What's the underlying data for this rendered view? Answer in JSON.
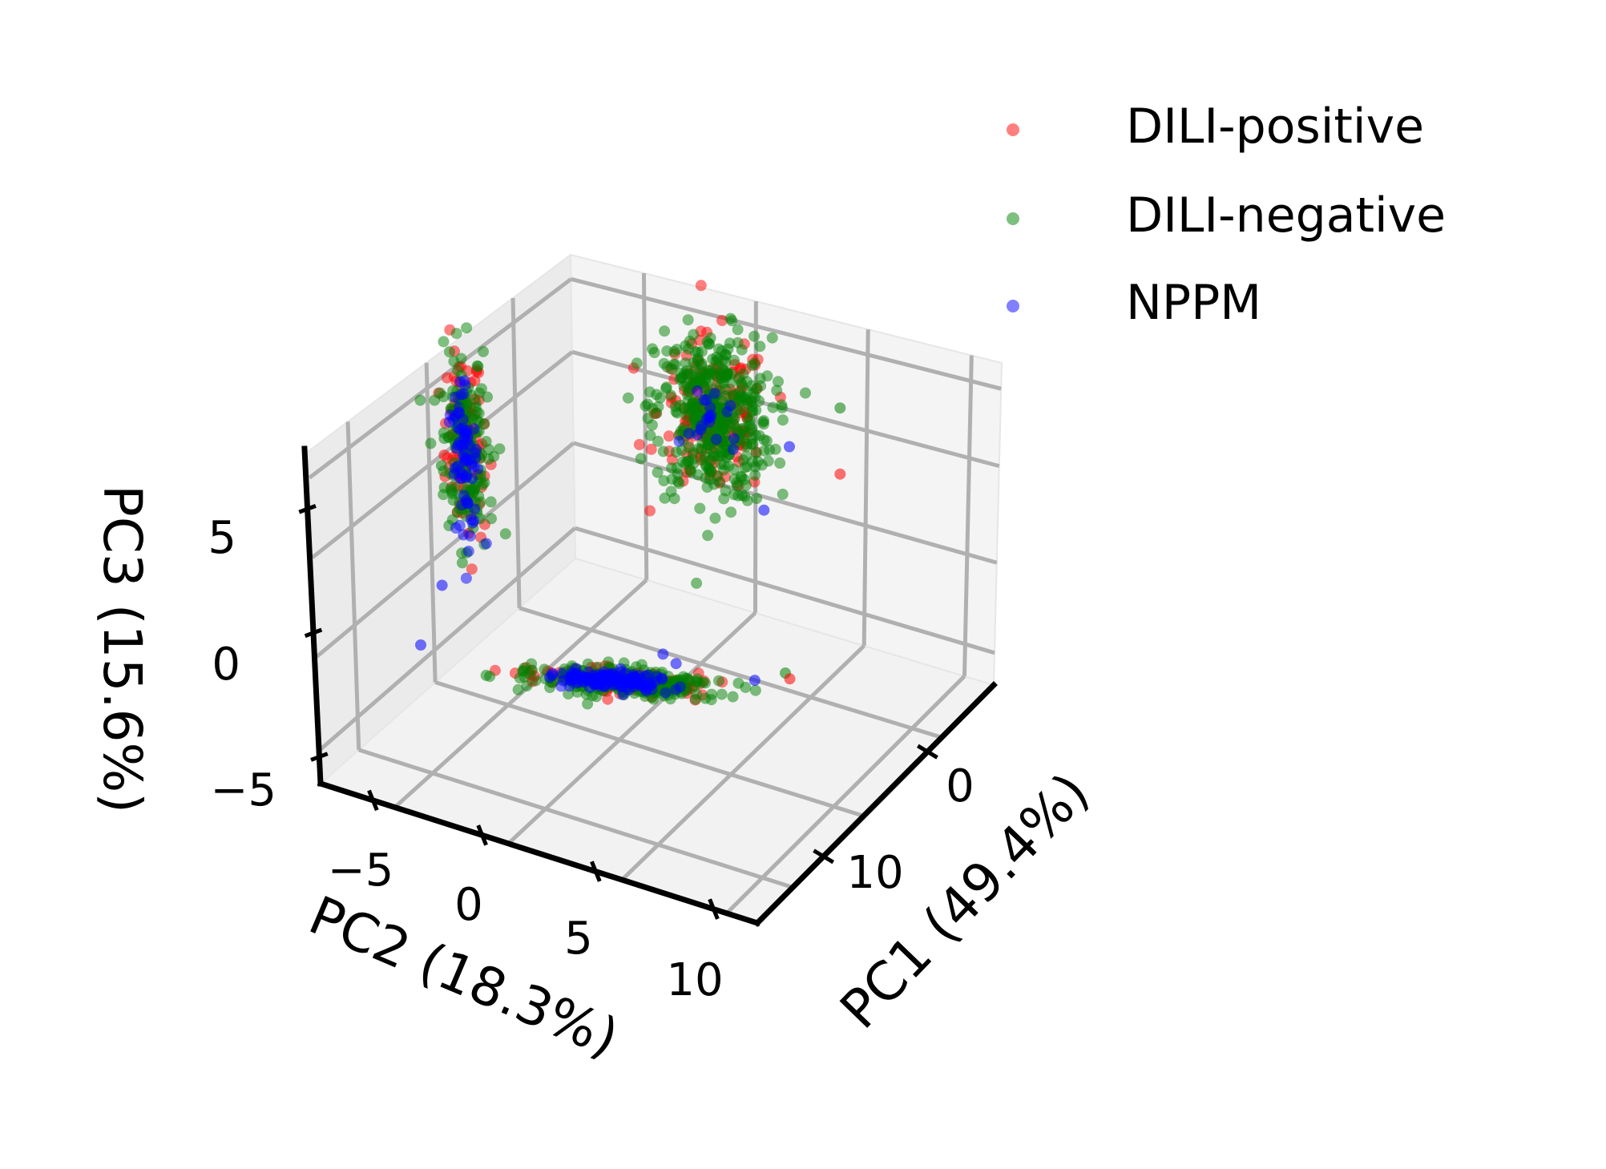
{
  "chart_data": {
    "type": "scatter",
    "projection": "3d",
    "xlabel": "PC1 (49.4%)",
    "ylabel": "PC2 (18.3%)",
    "zlabel": "PC3 (15.6%)",
    "xticks": [
      "0",
      "10"
    ],
    "yticks": [
      "−5",
      "0",
      "5",
      "10"
    ],
    "zticks": [
      "−5",
      "0",
      "5"
    ],
    "legend": {
      "placement": "top-right",
      "entries": [
        {
          "name": "DILI-positive",
          "color": "#ff0000"
        },
        {
          "name": "DILI-negative",
          "color": "#008000"
        },
        {
          "name": "NPPM",
          "color": "#0000ff"
        }
      ]
    },
    "grid": true,
    "series": [
      {
        "name": "DILI-positive",
        "color": "#ff0000"
      },
      {
        "name": "DILI-negative",
        "color": "#008000"
      },
      {
        "name": "NPPM",
        "color": "#0000ff"
      }
    ],
    "panes": {
      "pc2_pc3": {
        "description_axes": [
          "PC2",
          "PC3"
        ],
        "clusters": [
          {
            "series": "DILI-positive",
            "center": [
              0,
              6
            ],
            "spread": [
              1.3,
              1.8
            ],
            "n": 90
          },
          {
            "series": "DILI-negative",
            "center": [
              0,
              6
            ],
            "spread": [
              1.4,
              1.9
            ],
            "n": 170
          },
          {
            "series": "NPPM",
            "center": [
              -0.3,
              5.4
            ],
            "spread": [
              0.8,
              1.3
            ],
            "n": 70
          }
        ],
        "outliers": [
          {
            "series": "NPPM",
            "points": [
              [
                -4,
                1
              ],
              [
                -7,
                -1
              ]
            ]
          },
          {
            "series": "DILI-negative",
            "points": [
              [
                -3,
                5.5
              ],
              [
                0.5,
                7.5
              ]
            ]
          }
        ]
      },
      "pc1_pc3": {
        "description_axes": [
          "PC1",
          "PC3"
        ],
        "clusters": [
          {
            "series": "DILI-positive",
            "center": [
              0,
              5
            ],
            "spread": [
              2.2,
              1.8
            ],
            "n": 150
          },
          {
            "series": "DILI-negative",
            "center": [
              0,
              5
            ],
            "spread": [
              2.3,
              1.9
            ],
            "n": 420
          },
          {
            "series": "NPPM",
            "center": [
              0,
              5
            ],
            "spread": [
              1.2,
              1.0
            ],
            "n": 20
          }
        ],
        "outliers": [
          {
            "series": "DILI-positive",
            "points": [
              [
                10,
                3
              ]
            ]
          },
          {
            "series": "DILI-negative",
            "points": [
              [
                10,
                6
              ]
            ]
          },
          {
            "series": "NPPM",
            "points": [
              [
                6,
                4
              ],
              [
                4,
                1
              ]
            ]
          }
        ]
      },
      "pc1_pc2": {
        "description_axes": [
          "PC1",
          "PC2"
        ],
        "clusters": [
          {
            "series": "DILI-positive",
            "center": [
              0,
              0
            ],
            "spread": [
              2.4,
              3.0
            ],
            "n": 110
          },
          {
            "series": "DILI-negative",
            "center": [
              0,
              0
            ],
            "spread": [
              2.6,
              3.2
            ],
            "n": 280
          },
          {
            "series": "NPPM",
            "center": [
              0,
              -1
            ],
            "spread": [
              1.6,
              2.0
            ],
            "n": 140
          }
        ],
        "outliers": [
          {
            "series": "NPPM",
            "points": [
              [
                12,
                -1
              ],
              [
                9,
                1
              ],
              [
                6,
                8
              ]
            ]
          },
          {
            "series": "DILI-negative",
            "points": [
              [
                10,
                9
              ]
            ]
          },
          {
            "series": "DILI-positive",
            "points": [
              [
                8,
                10
              ]
            ]
          }
        ]
      }
    }
  }
}
